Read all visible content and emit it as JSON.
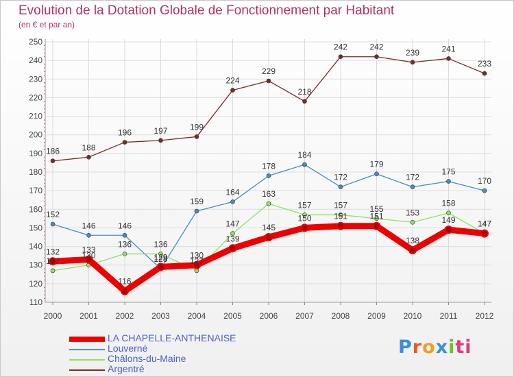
{
  "title": "Evolution de la Dotation Globale de Fonctionnement par Habitant",
  "subtitle": "(en € et par an)",
  "logo": {
    "text": "Proxiti",
    "letters": [
      "P",
      "r",
      "o",
      "x",
      "i",
      "ti"
    ]
  },
  "chart_data": {
    "type": "line",
    "x": [
      "2000",
      "2001",
      "2002",
      "2003",
      "2004",
      "2005",
      "2006",
      "2007",
      "2008",
      "2009",
      "2010",
      "2011",
      "2012"
    ],
    "ylim": [
      110,
      250
    ],
    "yticks": [
      110,
      120,
      130,
      140,
      150,
      160,
      170,
      180,
      190,
      200,
      210,
      220,
      230,
      240,
      250
    ],
    "grid": true,
    "legend_position": "bottom-left",
    "series": [
      {
        "name": "Argentré",
        "color": "#7a2a2a",
        "width": 1.3,
        "marker": 3,
        "values": [
          186,
          188,
          196,
          197,
          199,
          224,
          229,
          218,
          242,
          242,
          239,
          241,
          233
        ]
      },
      {
        "name": "Louverné",
        "color": "#4a8bc8",
        "width": 1.3,
        "marker": 3,
        "values": [
          152,
          146,
          146,
          128,
          159,
          164,
          178,
          184,
          172,
          179,
          172,
          175,
          170
        ]
      },
      {
        "name": "Châlons-du-Maine",
        "color": "#90e060",
        "width": 1.3,
        "marker": 3,
        "values": [
          127,
          130,
          136,
          136,
          127,
          147,
          163,
          157,
          157,
          155,
          153,
          158,
          147
        ]
      },
      {
        "name": "LA CHAPELLE-ANTHENAISE",
        "color": "#ee0000",
        "width": 9,
        "marker": 5,
        "values": [
          132,
          133,
          116,
          129,
          130,
          139,
          145,
          150,
          151,
          151,
          138,
          149,
          147
        ]
      }
    ],
    "legend_order": [
      "LA CHAPELLE-ANTHENAISE",
      "Louverné",
      "Châlons-du-Maine",
      "Argentré"
    ]
  }
}
